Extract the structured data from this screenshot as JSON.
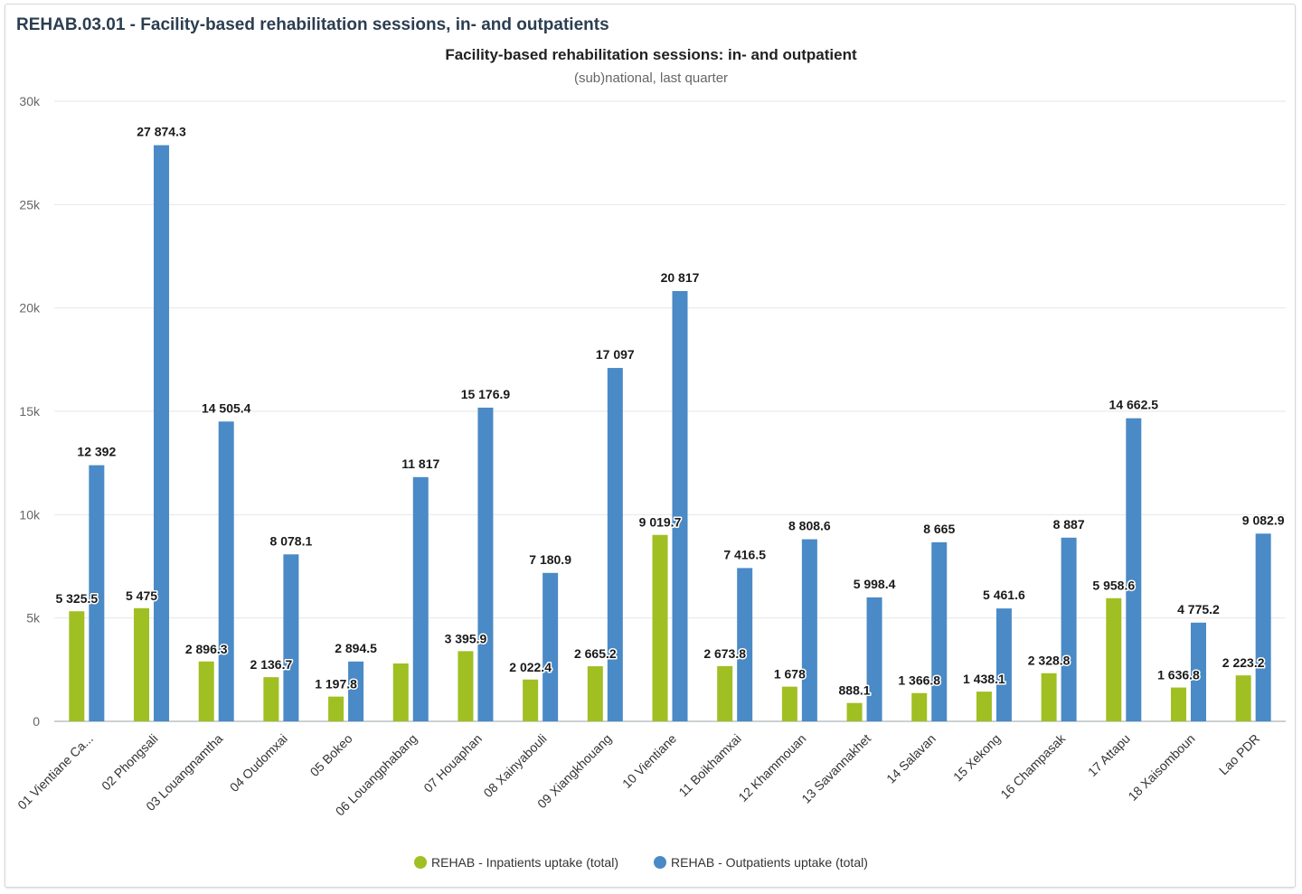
{
  "card": {
    "title": "REHAB.03.01 - Facility-based rehabilitation sessions, in- and outpatients"
  },
  "chart_data": {
    "type": "bar",
    "title": "Facility-based rehabilitation sessions: in- and outpatient",
    "subtitle": "(sub)national, last quarter",
    "xlabel": "",
    "ylabel": "",
    "ylim": [
      0,
      30000
    ],
    "yticks": [
      0,
      5000,
      10000,
      15000,
      20000,
      25000,
      30000
    ],
    "ytick_labels": [
      "0",
      "5k",
      "10k",
      "15k",
      "20k",
      "25k",
      "30k"
    ],
    "grid": true,
    "legend_position": "bottom",
    "categories": [
      "01 Vientiane Ca...",
      "02 Phongsali",
      "03 Louangnamtha",
      "04 Oudomxai",
      "05 Bokeo",
      "06 Louangphabang",
      "07 Houaphan",
      "08 Xainyabouli",
      "09 Xiangkhouang",
      "10 Vientiane",
      "11 Boikhamxai",
      "12 Khammouan",
      "13 Savannakhet",
      "14 Salavan",
      "15 Xekong",
      "16 Champasak",
      "17 Attapu",
      "18 Xaisomboun",
      "Lao PDR"
    ],
    "series": [
      {
        "name": "REHAB - Inpatients uptake (total)",
        "color": "#a0bf22",
        "values": [
          5325.5,
          5475,
          2896.3,
          2136.7,
          1197.8,
          2800,
          3395.9,
          2022.4,
          2665.2,
          9019.7,
          2673.8,
          1678,
          888.1,
          1366.8,
          1438.1,
          2328.8,
          5958.6,
          1636.8,
          2223.2
        ],
        "labels": [
          "5 325.5",
          "5 475",
          "2 896.3",
          "2 136.7",
          "1 197.8",
          "",
          "3 395.9",
          "2 022.4",
          "2 665.2",
          "9 019.7",
          "2 673.8",
          "1 678",
          "888.1",
          "1 366.8",
          "1 438.1",
          "2 328.8",
          "5 958.6",
          "1 636.8",
          "2 223.2"
        ]
      },
      {
        "name": "REHAB - Outpatients uptake (total)",
        "color": "#4a8ac6",
        "values": [
          12392,
          27874.3,
          14505.4,
          8078.1,
          2894.5,
          11817,
          15176.9,
          7180.9,
          17097,
          20817,
          7416.5,
          8808.6,
          5998.4,
          8665,
          5461.6,
          8887,
          14662.5,
          4775.2,
          9082.9
        ],
        "labels": [
          "12 392",
          "27 874.3",
          "14 505.4",
          "8 078.1",
          "2 894.5",
          "11 817",
          "15 176.9",
          "7 180.9",
          "17 097",
          "20 817",
          "7 416.5",
          "8 808.6",
          "5 998.4",
          "8 665",
          "5 461.6",
          "8 887",
          "14 662.5",
          "4 775.2",
          "9 082.9"
        ]
      }
    ]
  }
}
